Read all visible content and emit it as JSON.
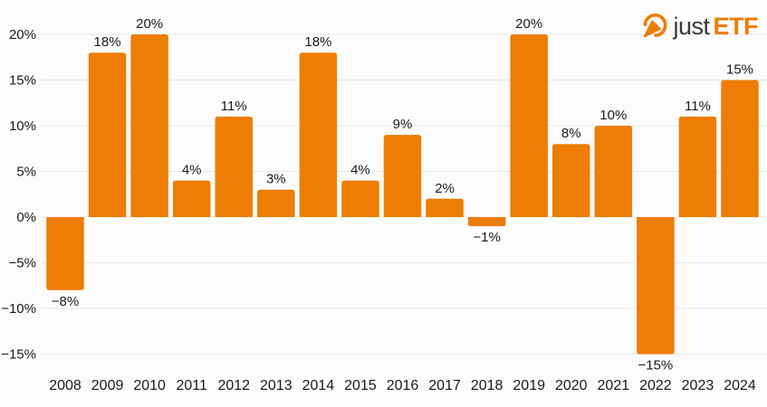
{
  "logo": {
    "text_regular": "just",
    "text_bold": "ETF"
  },
  "colors": {
    "bar": "#ED7D05",
    "background": "#FCFCFC",
    "gridline": "#E7E7E7",
    "text": "#1A1A1A",
    "logo_dark": "#3A3A39",
    "logo_orange": "#ED7D05"
  },
  "chart_data": {
    "type": "bar",
    "title": "",
    "xlabel": "",
    "ylabel": "",
    "unit": "%",
    "categories": [
      "2008",
      "2009",
      "2010",
      "2011",
      "2012",
      "2013",
      "2014",
      "2015",
      "2016",
      "2017",
      "2018",
      "2019",
      "2020",
      "2021",
      "2022",
      "2023",
      "2024"
    ],
    "values": [
      -8,
      18,
      20,
      4,
      11,
      3,
      18,
      4,
      9,
      2,
      -1,
      20,
      8,
      10,
      -15,
      11,
      15
    ],
    "value_labels": [
      "−8%",
      "18%",
      "20%",
      "4%",
      "11%",
      "3%",
      "18%",
      "4%",
      "9%",
      "2%",
      "−1%",
      "20%",
      "8%",
      "10%",
      "−15%",
      "11%",
      "15%"
    ],
    "ylim": [
      -15,
      20
    ],
    "ytick_step": 5,
    "yticks": [
      20,
      15,
      10,
      5,
      0,
      -5,
      -10,
      -15
    ],
    "ytick_labels": [
      "20%",
      "15%",
      "10%",
      "5%",
      "0%",
      "−5%",
      "−10%",
      "−15%"
    ],
    "grid": true,
    "legend": false
  }
}
